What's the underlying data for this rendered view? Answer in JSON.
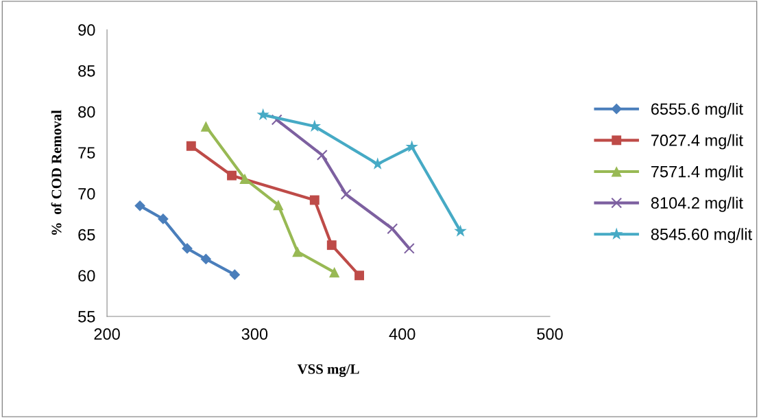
{
  "chart_data": {
    "type": "line",
    "xlabel": "VSS mg/L",
    "ylabel": "%  of COD Removal",
    "xlim": [
      200,
      500
    ],
    "xticks": [
      200,
      300,
      400,
      500
    ],
    "ylim": [
      55,
      90
    ],
    "yticks": [
      55,
      60,
      65,
      70,
      75,
      80,
      85,
      90
    ],
    "grid": false,
    "legend": "right",
    "series": [
      {
        "name": "6555.6 mg/lit",
        "color": "#4a7ebb",
        "marker": "diamond",
        "x": [
          222.3,
          238,
          254.3,
          267,
          286.5
        ],
        "values": [
          68.5,
          66.9,
          63.3,
          62.0,
          60.1
        ]
      },
      {
        "name": "7027.4 mg/lit",
        "color": "#be4b48",
        "marker": "square",
        "x": [
          257,
          284.5,
          340.6,
          352.2,
          370.9
        ],
        "values": [
          75.8,
          72.2,
          69.2,
          63.7,
          60.0
        ]
      },
      {
        "name": "7571.4 mg/lit",
        "color": "#98b954",
        "marker": "triangle",
        "x": [
          267,
          293.3,
          316,
          329,
          354
        ],
        "values": [
          78.2,
          71.8,
          68.6,
          62.9,
          60.4
        ]
      },
      {
        "name": "8104.2 mg/lit",
        "color": "#7d60a0",
        "marker": "cross",
        "x": [
          315,
          345.7,
          361.9,
          393.3,
          404.7
        ],
        "values": [
          79.0,
          74.7,
          69.9,
          65.7,
          63.3
        ]
      },
      {
        "name": "8545.60 mg/lit",
        "color": "#46aac5",
        "marker": "star",
        "x": [
          305.7,
          340.6,
          383.3,
          406.5,
          439.4
        ],
        "values": [
          79.6,
          78.2,
          73.6,
          75.7,
          65.4
        ]
      }
    ]
  }
}
